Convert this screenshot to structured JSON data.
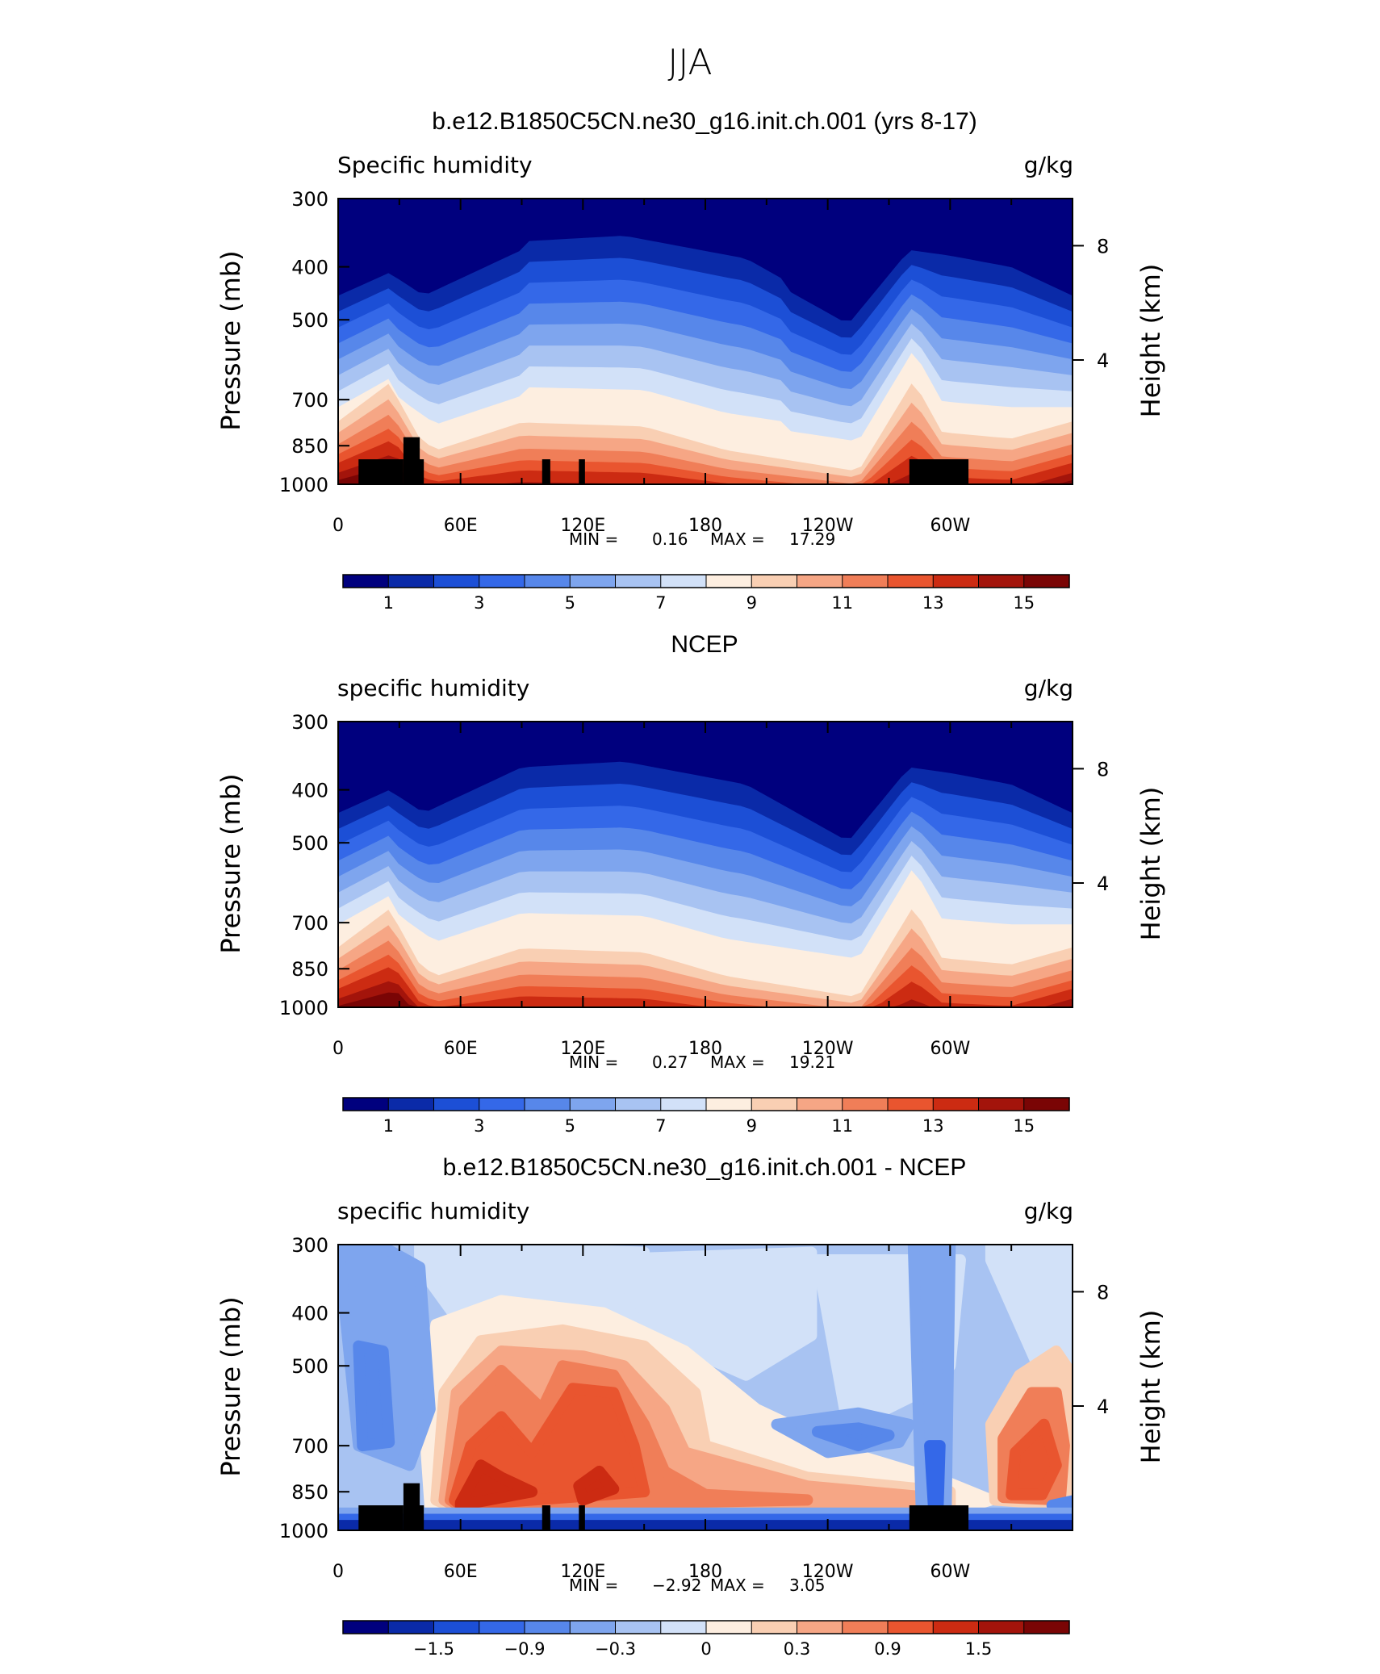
{
  "page_title": "JJA",
  "chart_data": [
    {
      "type": "heatmap",
      "title": "b.e12.B1850C5CN.ne30_g16.init.ch.001 (yrs 8-17)",
      "left_label": "Specific humidity",
      "right_label": "g/kg",
      "ylabel": "Pressure (mb)",
      "y2label": "Height (km)",
      "x_ticks": [
        "0",
        "60E",
        "120E",
        "180",
        "120W",
        "60W"
      ],
      "y_ticks": [
        "300",
        "400",
        "500",
        "700",
        "850",
        "1000"
      ],
      "y2_ticks": [
        "8",
        "4"
      ],
      "ylim": [
        1000,
        300
      ],
      "stats": {
        "min_label": "MIN =",
        "min": "0.16",
        "max_label": "MAX =",
        "max": "17.29"
      },
      "colorbar_labels": [
        "1",
        "3",
        "5",
        "7",
        "9",
        "11",
        "13",
        "15"
      ]
    },
    {
      "type": "heatmap",
      "title": "NCEP",
      "left_label": "specific humidity",
      "right_label": "g/kg",
      "ylabel": "Pressure (mb)",
      "y2label": "Height (km)",
      "x_ticks": [
        "0",
        "60E",
        "120E",
        "180",
        "120W",
        "60W"
      ],
      "y_ticks": [
        "300",
        "400",
        "500",
        "700",
        "850",
        "1000"
      ],
      "y2_ticks": [
        "8",
        "4"
      ],
      "ylim": [
        1000,
        300
      ],
      "stats": {
        "min_label": "MIN =",
        "min": "0.27",
        "max_label": "MAX =",
        "max": "19.21"
      },
      "colorbar_labels": [
        "1",
        "3",
        "5",
        "7",
        "9",
        "11",
        "13",
        "15"
      ]
    },
    {
      "type": "heatmap",
      "title": "b.e12.B1850C5CN.ne30_g16.init.ch.001 - NCEP",
      "left_label": "specific humidity",
      "right_label": "g/kg",
      "ylabel": "Pressure (mb)",
      "y2label": "Height (km)",
      "x_ticks": [
        "0",
        "60E",
        "120E",
        "180",
        "120W",
        "60W"
      ],
      "y_ticks": [
        "300",
        "400",
        "500",
        "700",
        "850",
        "1000"
      ],
      "y2_ticks": [
        "8",
        "4"
      ],
      "ylim": [
        1000,
        300
      ],
      "stats": {
        "min_label": "MIN =",
        "min": "−2.92",
        "max_label": "MAX =",
        "max": "3.05"
      },
      "colorbar_labels": [
        "−1.5",
        "−0.9",
        "−0.3",
        "0",
        "0.3",
        "0.9",
        "1.5"
      ]
    }
  ],
  "colormap": [
    "#00007e",
    "#0a2aa8",
    "#1c4fd6",
    "#3468e8",
    "#5787ea",
    "#7ea5ee",
    "#a8c3f2",
    "#d2e1f8",
    "#fdeee0",
    "#f9cfb3",
    "#f6a685",
    "#f07e58",
    "#e9552f",
    "#cc2b12",
    "#a3140b",
    "#7a0505"
  ]
}
